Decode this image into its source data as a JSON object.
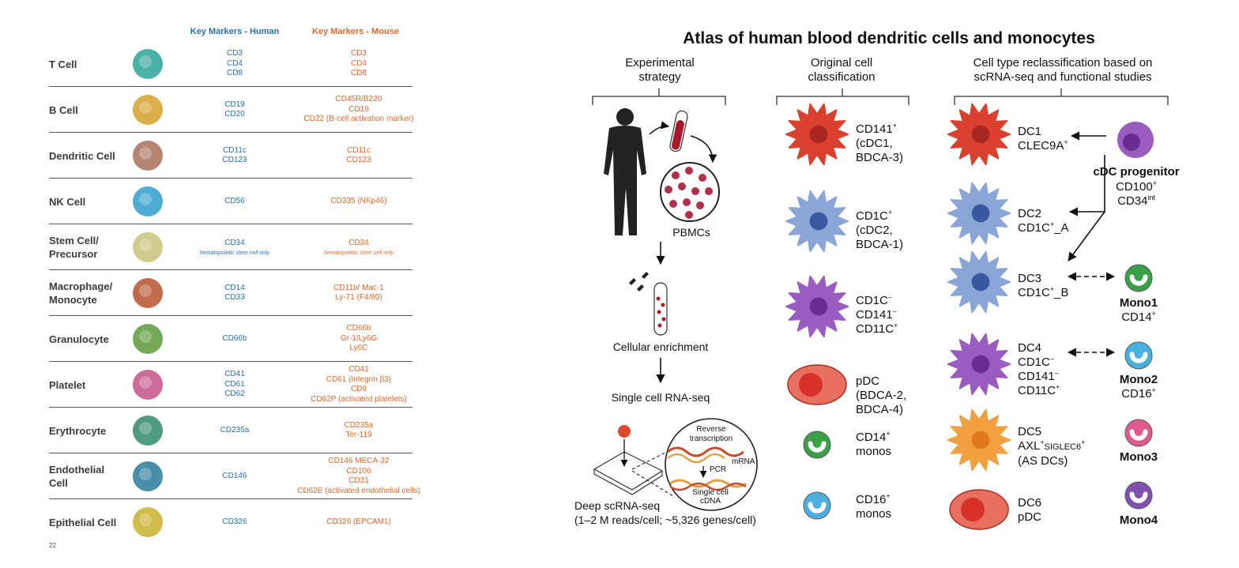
{
  "table": {
    "header_human": "Key Markers - Human",
    "header_mouse": "Key Markers - Mouse",
    "rows": [
      {
        "name": "T Cell",
        "human": [
          "CD3",
          "CD4",
          "CD8"
        ],
        "mouse": [
          "CD3",
          "CD4",
          "CD8"
        ],
        "color": "#2aa39a"
      },
      {
        "name": "B Cell",
        "human": [
          "CD19",
          "CD20"
        ],
        "mouse": [
          "CD45R/B220",
          "CD19",
          "CD22 (B-cell activation marker)"
        ],
        "color": "#d4a028"
      },
      {
        "name": "Dendritic Cell",
        "human": [
          "CD11c",
          "CD123"
        ],
        "mouse": [
          "CD11c",
          "CD123"
        ],
        "color": "#a8705a"
      },
      {
        "name": "NK Cell",
        "human": [
          "CD56"
        ],
        "mouse": [
          "CD335 (NKp46)"
        ],
        "color": "#2f9fcc"
      },
      {
        "name": "Stem Cell/",
        "name2": "Precursor",
        "human": [
          "CD34"
        ],
        "human_note": "hematopoietic stem cell only",
        "mouse": [
          "CD34"
        ],
        "mouse_note": "hematopoietic stem cell only",
        "color": "#c8c27a"
      },
      {
        "name": "Macrophage/",
        "name2": "Monocyte",
        "human": [
          "CD14",
          "CD33"
        ],
        "mouse": [
          "CD11b/ Mac-1",
          "Ly-71 (F4/80)"
        ],
        "color": "#b5502f"
      },
      {
        "name": "Granulocyte",
        "human": [
          "CD66b"
        ],
        "mouse": [
          "CD66b",
          "Gr-1/Ly6G",
          "Ly6C"
        ],
        "color": "#5a9a3a"
      },
      {
        "name": "Platelet",
        "human": [
          "CD41",
          "CD61",
          "CD62"
        ],
        "mouse": [
          "CD41",
          "CD61 (Integrin β3)",
          "CD9",
          "CD62P (activated platelets)"
        ],
        "color": "#c4528a"
      },
      {
        "name": "Erythrocyte",
        "human": [
          "CD235a"
        ],
        "mouse": [
          "CD235a",
          "Ter-119"
        ],
        "color": "#2f8a6a"
      },
      {
        "name": "Endothelial",
        "name2": "Cell",
        "human": [
          "CD146"
        ],
        "mouse": [
          "CD146 MECA-32",
          "CD106",
          "CD31",
          "CD62E (activated endothelial cells)"
        ],
        "color": "#2a7a9a"
      },
      {
        "name": "Epithelial Cell",
        "human": [
          "CD326"
        ],
        "mouse": [
          "CD326 (EPCAM1)"
        ],
        "color": "#c8b02a"
      }
    ],
    "footer": "22"
  },
  "atlas": {
    "title": "Atlas of human blood dendritic cells and monocytes",
    "col1_header": [
      "Experimental",
      "strategy"
    ],
    "col2_header": [
      "Original cell",
      "classification"
    ],
    "col3_header": [
      "Cell type reclassification based on",
      "scRNA-seq and functional studies"
    ],
    "pbmcs": "PBMCs",
    "enrichment": "Cellular enrichment",
    "scrnaseq": "Single cell RNA-seq",
    "reverse": [
      "Reverse",
      "transcription"
    ],
    "mrna": "mRNA",
    "pcr": "PCR",
    "cdna": [
      "Single cell",
      "cDNA"
    ],
    "deep": [
      "Deep scRNA-seq",
      "(1–2 M reads/cell; ~5,326 genes/cell)"
    ],
    "original": [
      {
        "l1": "CD141",
        "s1": "+",
        "l2": "(cDC1,",
        "l3": "BDCA-3)"
      },
      {
        "l1": "CD1C",
        "s1": "+",
        "l2": "(cDC2,",
        "l3": "BDCA-1)"
      },
      {
        "l1": "CD1C",
        "s1": "–",
        "l2": "CD141",
        "s2": "–",
        "l3": "CD11C",
        "s3": "+"
      },
      {
        "l1": "pDC",
        "l2": "(BDCA-2,",
        "l3": "BDCA-4)"
      },
      {
        "l1": "CD14",
        "s1": "+",
        "l2": "monos"
      },
      {
        "l1": "CD16",
        "s1": "+",
        "l2": "monos"
      }
    ],
    "reclass": [
      {
        "l1": "DC1",
        "l2": "CLEC9A",
        "s2": "+"
      },
      {
        "l1": "DC2",
        "l2": "CD1C",
        "s2": "+",
        "t2": "_A"
      },
      {
        "l1": "DC3",
        "l2": "CD1C",
        "s2": "+",
        "t2": "_B"
      },
      {
        "l1": "DC4",
        "l2": "CD1C",
        "s2": "–",
        "l3": "CD141",
        "s3": "–",
        "l4": "CD11C",
        "s4": "+"
      },
      {
        "l1": "DC5",
        "l2": "AXL",
        "s2": "+",
        "t2": "SIGLEC6",
        "u2": "+",
        "l3": "(AS DCs)"
      },
      {
        "l1": "DC6",
        "l2": "pDC"
      }
    ],
    "progenitor": {
      "name": "cDC progenitor",
      "m1": "CD100",
      "s1": "+",
      "m2": "CD34",
      "s2": "int"
    },
    "monos": [
      {
        "name": "Mono1",
        "marker": "CD14",
        "sup": "+"
      },
      {
        "name": "Mono2",
        "marker": "CD16",
        "sup": "+"
      },
      {
        "name": "Mono3"
      },
      {
        "name": "Mono4"
      }
    ],
    "colors": {
      "red": "#d9402e",
      "blue": "#8aa6d6",
      "purple": "#9a5cc0",
      "orange": "#f0a040",
      "green": "#3aa048",
      "cyan": "#4ab0e0",
      "pink": "#e05a90",
      "violet": "#8050b0"
    }
  }
}
